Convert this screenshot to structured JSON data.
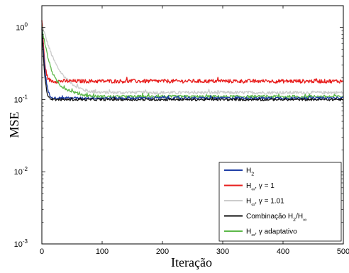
{
  "chart_data": {
    "type": "line",
    "title": "",
    "xlabel": "Iteração",
    "ylabel": "MSE",
    "xlim": [
      0,
      500
    ],
    "ylim": [
      0.001,
      2
    ],
    "yscale": "log",
    "grid": false,
    "legend_position": "bottom-right",
    "x_ticks": [
      "0",
      "100",
      "200",
      "300",
      "400",
      "500"
    ],
    "y_ticks": [
      {
        "base": "10",
        "exp": "-3",
        "value": 0.001
      },
      {
        "base": "10",
        "exp": "-2",
        "value": 0.01
      },
      {
        "base": "10",
        "exp": "-1",
        "value": 0.1
      },
      {
        "base": "10",
        "exp": "0",
        "value": 1
      }
    ],
    "series": [
      {
        "name": "H2",
        "name_main": "H",
        "name_sub": "2",
        "name_rest": "",
        "color": "#1f3fa6",
        "start": 1.0,
        "steady": 0.105,
        "decay": 3.0,
        "noise": 0.035,
        "tail_peak": 0.0
      },
      {
        "name": "H∞, γ = 1",
        "name_main": "H",
        "name_sub": "∞",
        "name_rest": ", γ = 1",
        "color": "#e8201f",
        "start": 1.25,
        "steady": 0.18,
        "decay": 2.5,
        "noise": 0.06,
        "tail_peak": 0.0
      },
      {
        "name": "H∞, γ = 1.01",
        "name_main": "H",
        "name_sub": "∞",
        "name_rest": ", γ = 1.01",
        "color": "#cccccc",
        "start": 1.1,
        "steady": 0.125,
        "decay": 12.0,
        "noise": 0.05,
        "tail_peak": 0.045
      },
      {
        "name": "Combinação H2/H∞",
        "name_main": "Combinação H",
        "name_sub": "2",
        "name_rest": "/H",
        "name_sub2": "∞",
        "color": "#111111",
        "start": 0.95,
        "steady": 0.1,
        "decay": 2.5,
        "noise": 0.035,
        "tail_peak": 0.0
      },
      {
        "name": "H∞, γ adaptativo",
        "name_main": "H",
        "name_sub": "∞",
        "name_rest": ", γ adaptativo",
        "color": "#5cb848",
        "start": 1.0,
        "steady": 0.11,
        "decay": 8.0,
        "noise": 0.045,
        "tail_peak": 0.03
      }
    ]
  }
}
